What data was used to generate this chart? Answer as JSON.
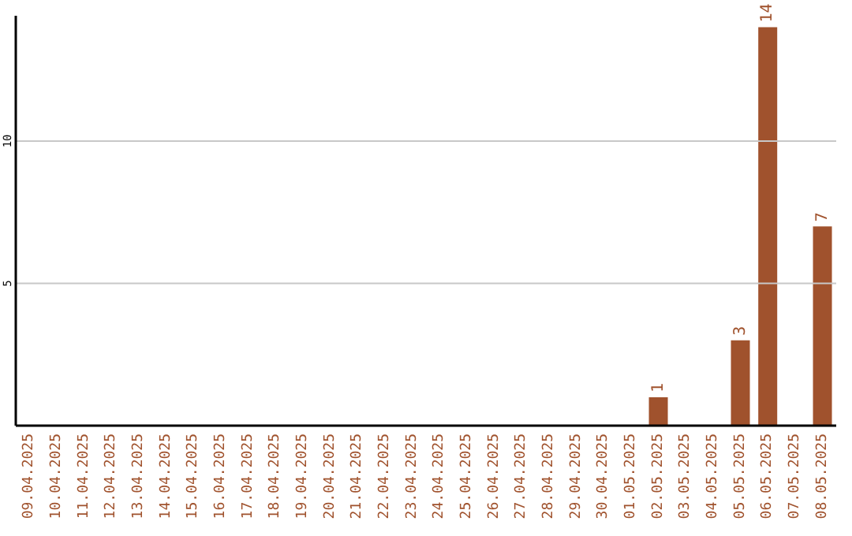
{
  "chart_data": {
    "type": "bar",
    "categories": [
      "09.04.2025",
      "10.04.2025",
      "11.04.2025",
      "12.04.2025",
      "13.04.2025",
      "14.04.2025",
      "15.04.2025",
      "16.04.2025",
      "17.04.2025",
      "18.04.2025",
      "19.04.2025",
      "20.04.2025",
      "21.04.2025",
      "22.04.2025",
      "23.04.2025",
      "24.04.2025",
      "25.04.2025",
      "26.04.2025",
      "27.04.2025",
      "28.04.2025",
      "29.04.2025",
      "30.04.2025",
      "01.05.2025",
      "02.05.2025",
      "03.05.2025",
      "04.05.2025",
      "05.05.2025",
      "06.05.2025",
      "07.05.2025",
      "08.05.2025"
    ],
    "values": [
      0,
      0,
      0,
      0,
      0,
      0,
      0,
      0,
      0,
      0,
      0,
      0,
      0,
      0,
      0,
      0,
      0,
      0,
      0,
      0,
      0,
      0,
      0,
      1,
      0,
      0,
      3,
      14,
      0,
      7
    ],
    "value_labels": [
      null,
      null,
      null,
      null,
      null,
      null,
      null,
      null,
      null,
      null,
      null,
      null,
      null,
      null,
      null,
      null,
      null,
      null,
      null,
      null,
      null,
      null,
      null,
      "1",
      null,
      null,
      "3",
      "14",
      null,
      "7"
    ],
    "color": "#a0522d",
    "ylim": [
      0,
      14.4
    ],
    "yticks": [
      5,
      10
    ],
    "grid": "y",
    "legend": false
  }
}
